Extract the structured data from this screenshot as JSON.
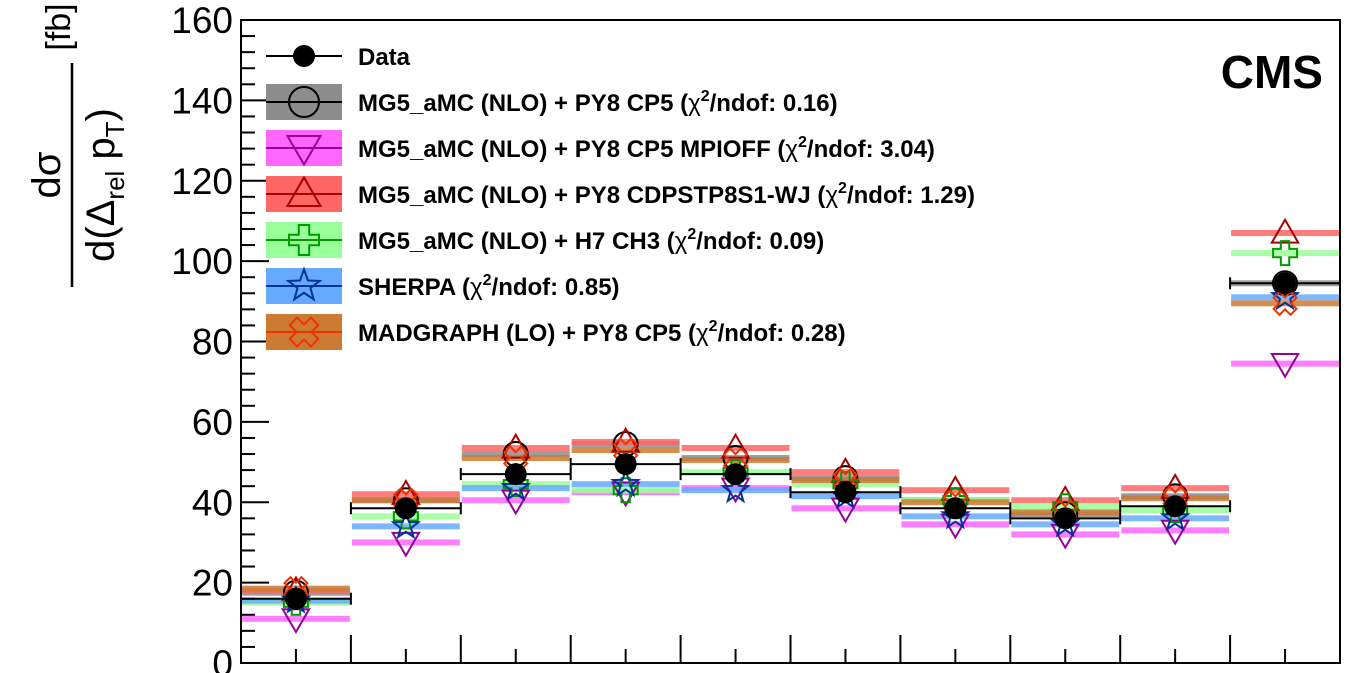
{
  "title": "",
  "experiment_label": "CMS",
  "ylabel": {
    "numerator": "dσ",
    "denominator_prefix": "d(Δ",
    "denominator_sub": "rel",
    "denominator_mid": " p",
    "denominator_sub2": "T",
    "denominator_suffix": ")",
    "unit": "[fb]"
  },
  "colors": {
    "data": "#000000",
    "mg5_cp5": "#8c8c8c",
    "mpioff": "#ff66ff",
    "cdpstp": "#ff6666",
    "h7": "#99ff99",
    "sherpa": "#66aaff",
    "madgraph_lo": "#cc7a33"
  },
  "chart_data": {
    "type": "scatter",
    "bins": 10,
    "ylim": [
      0,
      160
    ],
    "yticks": [
      "0",
      "20",
      "40",
      "60",
      "80",
      "100",
      "120",
      "140",
      "160"
    ],
    "grid": false,
    "legend_position": "top-left",
    "legend": [
      {
        "label": "Data",
        "chi2": "",
        "marker": "filled-circle"
      },
      {
        "label": "MG5_aMC (NLO) + PY8 CP5 (",
        "chi2": "0.16",
        "marker": "open-circle"
      },
      {
        "label": "MG5_aMC (NLO) + PY8 CP5 MPIOFF (",
        "chi2": "3.04",
        "marker": "down-triangle"
      },
      {
        "label": "MG5_aMC (NLO) + PY8 CDPSTP8S1-WJ (",
        "chi2": "1.29",
        "marker": "up-triangle"
      },
      {
        "label": "MG5_aMC (NLO) + H7 CH3 (",
        "chi2": "0.09",
        "marker": "open-cross"
      },
      {
        "label": "SHERPA (",
        "chi2": "0.85",
        "marker": "open-star"
      },
      {
        "label": "MADGRAPH (LO) + PY8 CP5 (",
        "chi2": "0.28",
        "marker": "open-x"
      }
    ],
    "chi2_prefix": "χ",
    "chi2_sup": "2",
    "chi2_suffix": "/ndof: ",
    "series": [
      {
        "name": "Data",
        "values": [
          16,
          38.5,
          47,
          49.5,
          47,
          42.5,
          38.5,
          36,
          39,
          94.5
        ]
      },
      {
        "name": "MG5_aMC (NLO) + PY8 CP5",
        "values": [
          17.5,
          40.5,
          52,
          54.5,
          51,
          46,
          40.5,
          37,
          41.5,
          94.5
        ]
      },
      {
        "name": "MG5_aMC (NLO) + PY8 CP5 MPIOFF",
        "values": [
          11,
          30,
          40.5,
          42.5,
          43.5,
          38.5,
          34.5,
          32,
          33,
          74.5
        ]
      },
      {
        "name": "MG5_aMC (NLO) + PY8 CDPSTP8S1-WJ",
        "values": [
          18,
          42,
          53.5,
          55,
          53.5,
          47.5,
          43,
          40.5,
          43.5,
          107
        ]
      },
      {
        "name": "MG5_aMC (NLO) + H7 CH3",
        "values": [
          15,
          36.5,
          44.5,
          43,
          47.5,
          44.5,
          40.5,
          39,
          38,
          102
        ]
      },
      {
        "name": "SHERPA",
        "values": [
          15.5,
          34,
          43.5,
          44.5,
          43,
          41.5,
          36.5,
          34.5,
          36,
          91
        ]
      },
      {
        "name": "MADGRAPH (LO) + PY8 CP5",
        "values": [
          18.5,
          40.5,
          51,
          53,
          50.5,
          45.5,
          40,
          37.5,
          41,
          89.5
        ]
      }
    ],
    "data_xerr": true
  }
}
